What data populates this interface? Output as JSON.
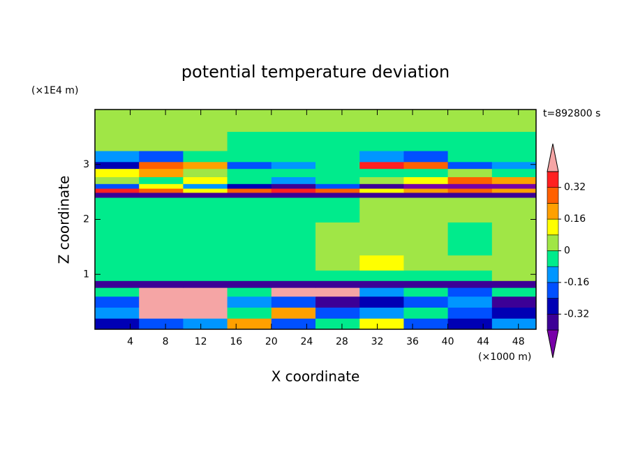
{
  "chart_data": {
    "type": "contourf",
    "title": "potential temperature deviation",
    "x_label": "X coordinate",
    "y_label": "Z coordinate",
    "x_unit_label": "(×1000 m)",
    "y_unit_label": "(×1E4 m)",
    "annotation": "t=892800 s",
    "xlim": [
      0,
      50
    ],
    "ylim": [
      0,
      4
    ],
    "xticks": [
      4,
      8,
      12,
      16,
      20,
      24,
      28,
      32,
      36,
      40,
      44,
      48
    ],
    "yticks": [
      1,
      2,
      3
    ],
    "x": [
      2.5,
      7.5,
      12.5,
      17.5,
      22.5,
      27.5,
      32.5,
      37.5,
      42.5,
      47.5
    ],
    "y": [
      0.1,
      0.3,
      0.5,
      0.7,
      0.82,
      0.95,
      1.2,
      1.5,
      1.8,
      2.1,
      2.35,
      2.45,
      2.53,
      2.6,
      2.7,
      2.85,
      3.0,
      3.1,
      3.4,
      3.8
    ],
    "z": [
      [
        -0.28,
        -0.2,
        -0.12,
        0.2,
        -0.2,
        -0.05,
        0.1,
        -0.2,
        -0.28,
        -0.12
      ],
      [
        -0.12,
        0.5,
        0.5,
        -0.05,
        0.2,
        -0.2,
        -0.12,
        -0.05,
        -0.2,
        -0.28
      ],
      [
        -0.2,
        0.5,
        0.45,
        -0.12,
        -0.2,
        -0.36,
        -0.28,
        -0.2,
        -0.12,
        -0.36
      ],
      [
        -0.05,
        0.45,
        0.5,
        -0.05,
        0.5,
        0.45,
        -0.12,
        -0.05,
        -0.2,
        -0.05
      ],
      [
        -0.36,
        -0.36,
        -0.36,
        -0.36,
        -0.36,
        -0.36,
        -0.36,
        -0.36,
        -0.36,
        -0.36
      ],
      [
        -0.04,
        -0.04,
        -0.04,
        -0.04,
        -0.04,
        -0.04,
        -0.04,
        -0.04,
        -0.04,
        0.04
      ],
      [
        -0.04,
        -0.04,
        -0.04,
        -0.04,
        -0.04,
        0.04,
        0.12,
        0.04,
        0.04,
        0.04
      ],
      [
        -0.04,
        -0.04,
        -0.04,
        -0.04,
        -0.04,
        0.04,
        0.04,
        0.04,
        -0.04,
        0.04
      ],
      [
        -0.04,
        -0.04,
        -0.04,
        -0.04,
        -0.04,
        0.04,
        0.04,
        0.04,
        -0.04,
        0.04
      ],
      [
        -0.04,
        -0.04,
        -0.04,
        -0.04,
        -0.04,
        -0.04,
        0.04,
        0.04,
        0.04,
        0.04
      ],
      [
        -0.04,
        -0.04,
        -0.04,
        -0.04,
        -0.04,
        -0.04,
        0.04,
        0.04,
        0.04,
        0.04
      ],
      [
        -0.36,
        -0.36,
        -0.36,
        -0.36,
        -0.36,
        -0.36,
        -0.36,
        -0.36,
        -0.36,
        -0.36
      ],
      [
        0.36,
        0.28,
        0.12,
        0.28,
        0.36,
        0.28,
        0.12,
        0.2,
        0.28,
        0.2
      ],
      [
        -0.2,
        0.12,
        -0.12,
        -0.28,
        -0.36,
        -0.2,
        -0.36,
        -0.44,
        -0.44,
        -0.44
      ],
      [
        0.04,
        -0.04,
        0.12,
        -0.04,
        -0.12,
        -0.04,
        0.04,
        0.12,
        0.28,
        0.2
      ],
      [
        0.12,
        0.2,
        0.04,
        -0.04,
        -0.04,
        -0.04,
        -0.04,
        -0.04,
        0.04,
        -0.04
      ],
      [
        -0.28,
        0.28,
        0.2,
        -0.2,
        -0.12,
        -0.04,
        0.36,
        0.28,
        -0.2,
        -0.12
      ],
      [
        -0.12,
        -0.2,
        -0.04,
        -0.04,
        -0.04,
        -0.04,
        -0.12,
        -0.2,
        -0.04,
        -0.04
      ],
      [
        0.04,
        0.04,
        0.04,
        -0.04,
        -0.04,
        -0.04,
        -0.04,
        -0.04,
        -0.04,
        -0.04
      ],
      [
        0.04,
        0.04,
        0.04,
        0.04,
        0.04,
        0.04,
        0.04,
        0.04,
        0.04,
        0.04
      ]
    ],
    "colorbar": {
      "levels": [
        -0.4,
        -0.32,
        -0.24,
        -0.16,
        -0.08,
        0,
        0.08,
        0.16,
        0.24,
        0.32,
        0.4
      ],
      "colors": [
        "#7800a8",
        "#3c0096",
        "#0000b4",
        "#0050ff",
        "#0096ff",
        "#00eb8c",
        "#a0e646",
        "#ffff00",
        "#ffa000",
        "#ff6000",
        "#ff2020",
        "#f5a5a5"
      ],
      "ticks": [
        -0.32,
        -0.16,
        0,
        0.16,
        0.32
      ]
    }
  }
}
